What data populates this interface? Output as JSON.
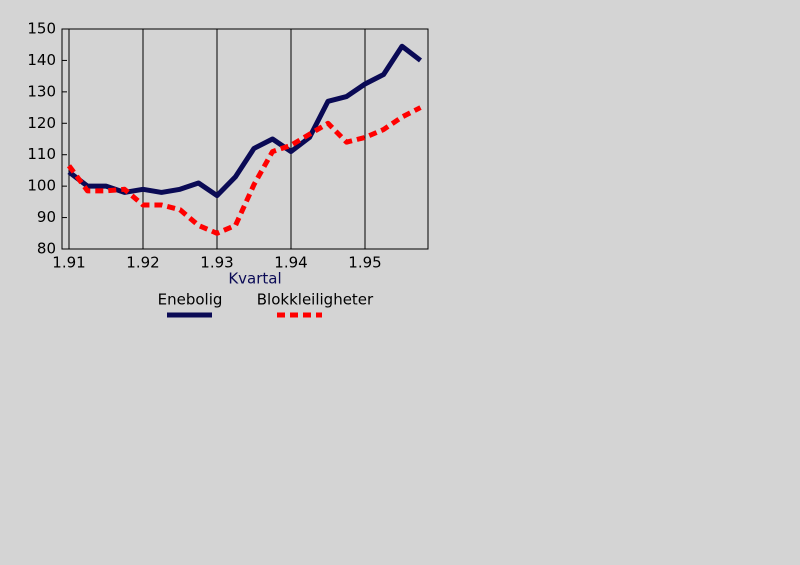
{
  "chart_data": {
    "type": "line",
    "x_label": "Kvartal",
    "categories": [
      "1.91",
      null,
      null,
      null,
      "1.92",
      null,
      null,
      null,
      "1.93",
      null,
      null,
      null,
      "1.94",
      null,
      null,
      null,
      "1.95",
      null,
      null,
      null
    ],
    "series": [
      {
        "name": "Enebolig",
        "color": "#0a0a55",
        "dashed": false,
        "values": [
          104.5,
          100,
          100,
          98,
          99,
          98,
          99,
          101,
          97,
          103,
          112,
          115,
          111,
          115.5,
          127,
          128.5,
          132.5,
          135.5,
          144.5,
          140
        ]
      },
      {
        "name": "Blokkleiligheter",
        "color": "#ff0000",
        "dashed": true,
        "values": [
          106.5,
          98.5,
          98.5,
          99,
          94,
          94,
          92.5,
          87.5,
          85,
          87.5,
          100.5,
          111,
          113,
          116.5,
          120,
          114,
          115.5,
          118,
          122,
          125
        ]
      }
    ],
    "ylim": [
      80,
      150
    ],
    "yticks": [
      80,
      90,
      100,
      110,
      120,
      130,
      140,
      150
    ],
    "grid": "x"
  }
}
